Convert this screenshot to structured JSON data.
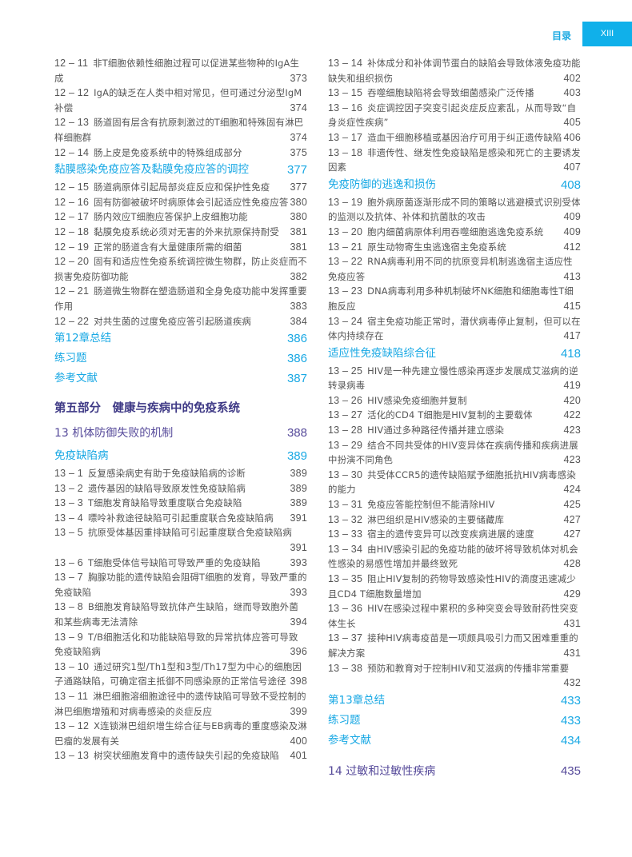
{
  "header": {
    "label": "目录",
    "page": "XIII"
  },
  "left": [
    {
      "type": "entry",
      "num": "12 – 11",
      "text": "非T细胞依赖性细胞过程可以促进某些物种的IgA生成",
      "page": "373"
    },
    {
      "type": "entry",
      "num": "12 – 12",
      "text": "IgA的缺乏在人类中相对常见，但可通过分泌型IgM补偿",
      "page": "374"
    },
    {
      "type": "entry",
      "num": "12 – 13",
      "text": "肠道固有层含有抗原刺激过的T细胞和特殊固有淋巴样细胞群",
      "page": "374"
    },
    {
      "type": "entry",
      "num": "12 – 14",
      "text": "肠上皮是免疫系统中的特殊组成部分",
      "page": "375"
    },
    {
      "type": "section",
      "text": "黏膜感染免疫应答及黏膜免疫应答的调控",
      "page": "377"
    },
    {
      "type": "entry",
      "num": "12 – 15",
      "text": "肠道病原体引起局部炎症反应和保护性免疫",
      "page": "377"
    },
    {
      "type": "entry",
      "num": "12 – 16",
      "text": "固有防御被破坏时病原体会引起适应性免疫应答",
      "page": "380"
    },
    {
      "type": "entry",
      "num": "12 – 17",
      "text": "肠内效应T细胞应答保护上皮细胞功能",
      "page": "380"
    },
    {
      "type": "entry",
      "num": "12 – 18",
      "text": "黏膜免疫系统必须对无害的外来抗原保持耐受",
      "page": "381"
    },
    {
      "type": "entry",
      "num": "12 – 19",
      "text": "正常的肠道含有大量健康所需的细菌",
      "page": "381"
    },
    {
      "type": "entry",
      "num": "12 – 20",
      "text": "固有和适应性免疫系统调控微生物群，防止炎症而不损害免疫防御功能",
      "page": "382"
    },
    {
      "type": "entry",
      "num": "12 – 21",
      "text": "肠道微生物群在塑造肠道和全身免疫功能中发挥重要作用",
      "page": "383"
    },
    {
      "type": "entry",
      "num": "12 – 22",
      "text": "对共生菌的过度免疫应答引起肠道疾病",
      "page": "384"
    },
    {
      "type": "section",
      "text": "第12章总结",
      "page": "386"
    },
    {
      "type": "section",
      "text": "练习题",
      "page": "386"
    },
    {
      "type": "section",
      "text": "参考文献",
      "page": "387"
    },
    {
      "type": "part",
      "text": "第五部分　健康与疾病中的免疫系统"
    },
    {
      "type": "chapter",
      "text": "13  机体防御失败的机制",
      "page": "388"
    },
    {
      "type": "section",
      "text": "免疫缺陷病",
      "page": "389"
    },
    {
      "type": "entry",
      "num": "13 – 1",
      "text": "反复感染病史有助于免疫缺陷病的诊断",
      "page": "389"
    },
    {
      "type": "entry",
      "num": "13 – 2",
      "text": "遗传基因的缺陷导致原发性免疫缺陷病",
      "page": "389"
    },
    {
      "type": "entry",
      "num": "13 – 3",
      "text": "T细胞发育缺陷导致重度联合免疫缺陷",
      "page": "389"
    },
    {
      "type": "entry",
      "num": "13 – 4",
      "text": "嘌呤补救途径缺陷可引起重度联合免疫缺陷病",
      "page": "391"
    },
    {
      "type": "entry",
      "num": "13 – 5",
      "text": "抗原受体基因重排缺陷可引起重度联合免疫缺陷病",
      "page": "391"
    },
    {
      "type": "entry",
      "num": "13 – 6",
      "text": "T细胞受体信号缺陷可导致严重的免疫缺陷",
      "page": "393"
    },
    {
      "type": "entry",
      "num": "13 – 7",
      "text": "胸腺功能的遗传缺陷会阻碍T细胞的发育，导致严重的免疫缺陷",
      "page": "393"
    },
    {
      "type": "entry",
      "num": "13 – 8",
      "text": "B细胞发育缺陷导致抗体产生缺陷，继而导致胞外菌和某些病毒无法清除",
      "page": "394"
    },
    {
      "type": "entry",
      "num": "13 – 9",
      "text": "T/B细胞活化和功能缺陷导致的异常抗体应答可导致免疫缺陷病",
      "page": "396"
    },
    {
      "type": "entry",
      "num": "13 – 10",
      "text": "通过研究1型/Th1型和3型/Th17型为中心的细胞因子通路缺陷，可确定宿主抵御不同感染原的正常信号途径",
      "page": "398"
    },
    {
      "type": "entry",
      "num": "13 – 11",
      "text": "淋巴细胞溶细胞途径中的遗传缺陷可导致不受控制的淋巴细胞增殖和对病毒感染的炎症反应",
      "page": "399"
    },
    {
      "type": "entry",
      "num": "13 – 12",
      "text": "X连锁淋巴组织增生综合征与EB病毒的重度感染及淋巴瘤的发展有关",
      "page": "400"
    },
    {
      "type": "entry",
      "num": "13 – 13",
      "text": "树突状细胞发育中的遗传缺失引起的免疫缺陷",
      "page": "401"
    }
  ],
  "right": [
    {
      "type": "entry",
      "num": "13 – 14",
      "text": "补体成分和补体调节蛋白的缺陷会导致体液免疫功能缺失和组织损伤",
      "page": "402"
    },
    {
      "type": "entry",
      "num": "13 – 15",
      "text": "吞噬细胞缺陷将会导致细菌感染广泛传播",
      "page": "403"
    },
    {
      "type": "entry",
      "num": "13 – 16",
      "text": "炎症调控因子突变引起炎症反应紊乱，从而导致“自身炎症性疾病”",
      "page": "405"
    },
    {
      "type": "entry",
      "num": "13 – 17",
      "text": "造血干细胞移植或基因治疗可用于纠正遗传缺陷",
      "page": "406"
    },
    {
      "type": "entry",
      "num": "13 – 18",
      "text": "非遗传性、继发性免疫缺陷是感染和死亡的主要诱发因素",
      "page": "407"
    },
    {
      "type": "section",
      "text": "免疫防御的逃逸和损伤",
      "page": "408"
    },
    {
      "type": "entry",
      "num": "13 – 19",
      "text": "胞外病原菌逐渐形成不同的策略以逃避模式识别受体的监测以及抗体、补体和抗菌肽的攻击",
      "page": "409"
    },
    {
      "type": "entry",
      "num": "13 – 20",
      "text": "胞内细菌病原体利用吞噬细胞逃逸免疫系统",
      "page": "409"
    },
    {
      "type": "entry",
      "num": "13 – 21",
      "text": "原生动物寄生虫逃逸宿主免疫系统",
      "page": "412"
    },
    {
      "type": "entry",
      "num": "13 – 22",
      "text": "RNA病毒利用不同的抗原变异机制逃逸宿主适应性免疫应答",
      "page": "413"
    },
    {
      "type": "entry",
      "num": "13 – 23",
      "text": "DNA病毒利用多种机制破坏NK细胞和细胞毒性T细胞反应",
      "page": "415"
    },
    {
      "type": "entry",
      "num": "13 – 24",
      "text": "宿主免疫功能正常时，潜伏病毒停止复制，但可以在体内持续存在",
      "page": "417"
    },
    {
      "type": "section",
      "text": "适应性免疫缺陷综合征",
      "page": "418"
    },
    {
      "type": "entry",
      "num": "13 – 25",
      "text": "HIV是一种先建立慢性感染再逐步发展成艾滋病的逆转录病毒",
      "page": "419"
    },
    {
      "type": "entry",
      "num": "13 – 26",
      "text": "HIV感染免疫细胞并复制",
      "page": "420"
    },
    {
      "type": "entry",
      "num": "13 – 27",
      "text": "活化的CD4 T细胞是HIV复制的主要载体",
      "page": "422"
    },
    {
      "type": "entry",
      "num": "13 – 28",
      "text": "HIV通过多种路径传播并建立感染",
      "page": "423"
    },
    {
      "type": "entry",
      "num": "13 – 29",
      "text": "结合不同共受体的HIV变异体在疾病传播和疾病进展中扮演不同角色",
      "page": "423"
    },
    {
      "type": "entry",
      "num": "13 – 30",
      "text": "共受体CCR5的遗传缺陷赋予细胞抵抗HIV病毒感染的能力",
      "page": "424"
    },
    {
      "type": "entry",
      "num": "13 – 31",
      "text": "免疫应答能控制但不能清除HIV",
      "page": "425"
    },
    {
      "type": "entry",
      "num": "13 – 32",
      "text": "淋巴组织是HIV感染的主要储藏库",
      "page": "427"
    },
    {
      "type": "entry",
      "num": "13 – 33",
      "text": "宿主的遗传变异可以改变疾病进展的速度",
      "page": "427"
    },
    {
      "type": "entry",
      "num": "13 – 34",
      "text": "由HIV感染引起的免疫功能的破坏将导致机体对机会性感染的易感性增加并最终致死",
      "page": "428"
    },
    {
      "type": "entry",
      "num": "13 – 35",
      "text": "阻止HIV复制的药物导致感染性HIV的滴度迅速减少且CD4 T细胞数量增加",
      "page": "429"
    },
    {
      "type": "entry",
      "num": "13 – 36",
      "text": "HIV在感染过程中累积的多种突变会导致耐药性突变体生长",
      "page": "431"
    },
    {
      "type": "entry",
      "num": "13 – 37",
      "text": "接种HIV病毒疫苗是一项颇具吸引力而又困难重重的解决方案",
      "page": "431"
    },
    {
      "type": "entry",
      "num": "13 – 38",
      "text": "预防和教育对于控制HIV和艾滋病的传播非常重要",
      "page": "432"
    },
    {
      "type": "section",
      "text": "第13章总结",
      "page": "433"
    },
    {
      "type": "section",
      "text": "练习题",
      "page": "433"
    },
    {
      "type": "section",
      "text": "参考文献",
      "page": "434"
    },
    {
      "type": "gap"
    },
    {
      "type": "chapter",
      "text": "14  过敏和过敏性疾病",
      "page": "435"
    }
  ]
}
